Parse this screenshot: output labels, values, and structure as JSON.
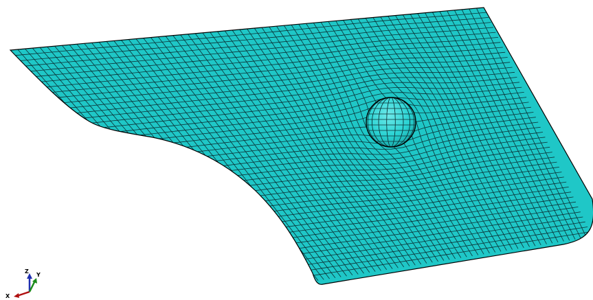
{
  "colors": {
    "background": "#ffffff",
    "mesh_fill": "#1fc7c7",
    "mesh_line": "#0b2f33",
    "edge": "#000000",
    "sphere_fill": "#2ad3d3",
    "axis_x": "#b01010",
    "axis_y": "#1a8a1a",
    "axis_z": "#1f2fb0"
  },
  "icons": {
    "triad": "xyz-axis-triad-icon",
    "sphere": "spherical-indenter"
  },
  "triad": {
    "x_label": "X",
    "y_label": "Y",
    "z_label": "Z"
  }
}
